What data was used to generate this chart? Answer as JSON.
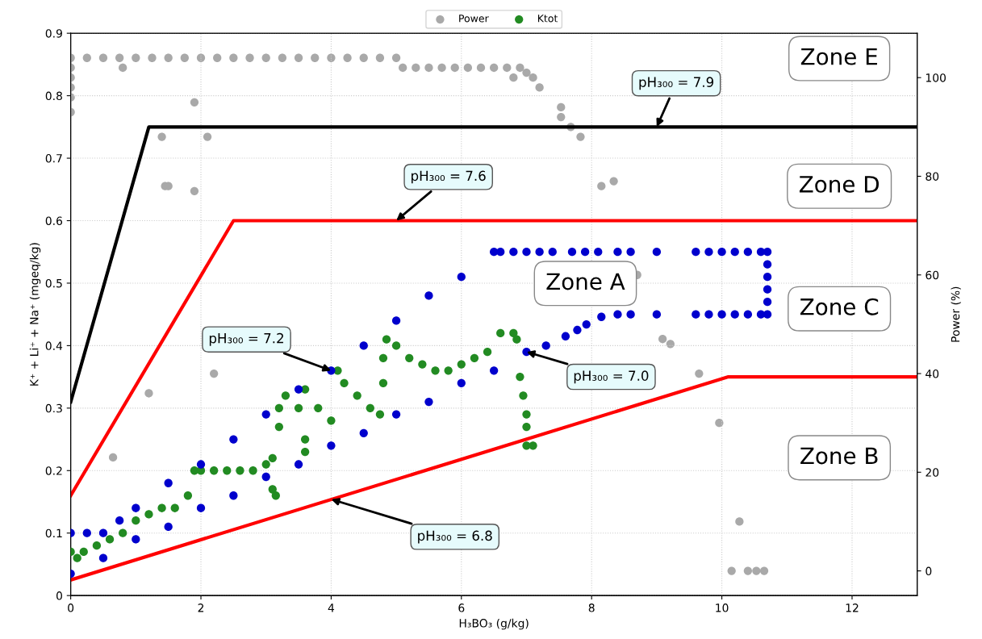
{
  "chart_data": {
    "type": "scatter",
    "xlabel": "H₃BO₃ (g/kg)",
    "ylabel": "K⁺ + Li⁺ + Na⁺ (mgeq/kg)",
    "y2label": "Power (%)",
    "xlim": [
      0,
      13
    ],
    "xticks": [
      0,
      2,
      4,
      6,
      8,
      10,
      12
    ],
    "ylim": [
      0,
      0.9
    ],
    "yticks": [
      0,
      0.1,
      0.2,
      0.3,
      0.4,
      0.5,
      0.6,
      0.7,
      0.8,
      0.9
    ],
    "y2lim": [
      -5,
      109
    ],
    "y2ticks": [
      0,
      20,
      40,
      60,
      80,
      100
    ],
    "grid": true,
    "legend": "top",
    "series": [
      {
        "name": "Power",
        "marker": "circle",
        "axis": "y2",
        "color": "#a9a9a9",
        "x": [
          0,
          0.25,
          0.5,
          0.75,
          1.0,
          1.25,
          1.5,
          1.75,
          2.0,
          2.25,
          2.5,
          2.75,
          3.0,
          3.25,
          3.5,
          3.75,
          4.0,
          4.25,
          4.5,
          4.75,
          5.0,
          5.1,
          5.3,
          5.5,
          5.7,
          5.9,
          6.1,
          6.3,
          6.5,
          6.7,
          6.9,
          0,
          0,
          0,
          0,
          0,
          0.8,
          1.4,
          1.45,
          1.5,
          1.9,
          1.9,
          2.1,
          0.65,
          1.2,
          2.2,
          6.8,
          7.0,
          7.1,
          7.2,
          7.53,
          7.53,
          7.68,
          7.83,
          8.15,
          8.34,
          8.7,
          9.09,
          9.21,
          9.65,
          9.96,
          10.27,
          10.15,
          10.4,
          10.53,
          10.65
        ],
        "values": [
          104,
          104,
          104,
          104,
          104,
          104,
          104,
          104,
          104,
          104,
          104,
          104,
          104,
          104,
          104,
          104,
          104,
          104,
          104,
          104,
          104,
          102,
          102,
          102,
          102,
          102,
          102,
          102,
          102,
          102,
          102,
          102,
          100,
          98,
          96,
          93,
          102,
          88,
          78,
          78,
          95,
          77,
          88,
          23,
          36,
          40,
          100,
          101,
          100,
          98,
          94,
          92,
          90,
          88,
          78,
          79,
          60,
          47,
          46,
          40,
          30,
          10,
          0,
          0,
          0,
          0
        ]
      },
      {
        "name": "Ktot",
        "marker": "circle",
        "color": "#228b22",
        "x": [
          0,
          0.1,
          0.2,
          0.4,
          0.6,
          0.8,
          1.0,
          1.2,
          1.4,
          1.6,
          1.8,
          1.9,
          2.0,
          2.2,
          2.4,
          2.6,
          2.8,
          3.0,
          3.1,
          3.1,
          3.15,
          3.2,
          3.2,
          3.3,
          3.5,
          3.6,
          3.6,
          3.6,
          3.8,
          4.0,
          4.1,
          4.2,
          4.4,
          4.6,
          4.75,
          4.8,
          4.8,
          4.85,
          5.0,
          5.2,
          5.4,
          5.6,
          5.8,
          6.0,
          6.2,
          6.4,
          6.6,
          6.8,
          6.85,
          6.9,
          6.95,
          7.0,
          7.0,
          7.0,
          7.1
        ],
        "values": [
          0.07,
          0.06,
          0.07,
          0.08,
          0.09,
          0.1,
          0.12,
          0.13,
          0.14,
          0.14,
          0.16,
          0.2,
          0.2,
          0.2,
          0.2,
          0.2,
          0.2,
          0.21,
          0.22,
          0.17,
          0.16,
          0.3,
          0.27,
          0.32,
          0.3,
          0.33,
          0.25,
          0.23,
          0.3,
          0.28,
          0.36,
          0.34,
          0.32,
          0.3,
          0.29,
          0.34,
          0.38,
          0.41,
          0.4,
          0.38,
          0.37,
          0.36,
          0.36,
          0.37,
          0.38,
          0.39,
          0.42,
          0.42,
          0.41,
          0.35,
          0.32,
          0.29,
          0.27,
          0.24,
          0.24
        ]
      },
      {
        "marker": "circle",
        "color": "#0000cd",
        "x": [
          0,
          0.25,
          0.5,
          0.75,
          1.0,
          1.5,
          2.0,
          2.5,
          3.0,
          3.5,
          4.0,
          4.5,
          5.0,
          5.5,
          6.0,
          6.5,
          6.6,
          6.8,
          7.0,
          7.2,
          7.4,
          7.7,
          7.9,
          8.1,
          8.4,
          8.6,
          9.0,
          9.6,
          9.8,
          10.0,
          10.2,
          10.4,
          10.6,
          10.7,
          10.7,
          10.7,
          10.7,
          10.7,
          10.7,
          10.6,
          10.4,
          10.2,
          10.0,
          9.8,
          9.6,
          9.0,
          8.6,
          8.4,
          8.15,
          7.92,
          7.78,
          7.6,
          7.3,
          0,
          0.5,
          1.0,
          1.5,
          2.0,
          2.5,
          3.0,
          3.5,
          4.0,
          4.5,
          5.0,
          5.5,
          6.0,
          6.5,
          7.0
        ],
        "values": [
          0.1,
          0.1,
          0.1,
          0.12,
          0.14,
          0.18,
          0.21,
          0.25,
          0.29,
          0.33,
          0.36,
          0.4,
          0.44,
          0.48,
          0.51,
          0.55,
          0.55,
          0.55,
          0.55,
          0.55,
          0.55,
          0.55,
          0.55,
          0.55,
          0.55,
          0.55,
          0.55,
          0.55,
          0.55,
          0.55,
          0.55,
          0.55,
          0.55,
          0.55,
          0.53,
          0.51,
          0.49,
          0.47,
          0.45,
          0.45,
          0.45,
          0.45,
          0.45,
          0.45,
          0.45,
          0.45,
          0.45,
          0.45,
          0.446,
          0.434,
          0.425,
          0.415,
          0.4,
          0.035,
          0.06,
          0.09,
          0.11,
          0.14,
          0.16,
          0.19,
          0.21,
          0.24,
          0.26,
          0.29,
          0.31,
          0.34,
          0.36,
          0.39
        ]
      },
      {
        "type": "line",
        "color": "#000000",
        "x": [
          0,
          1.2,
          13
        ],
        "values": [
          0.31,
          0.75,
          0.75
        ]
      },
      {
        "type": "line",
        "color": "#ff0000",
        "x": [
          0,
          2.5,
          13
        ],
        "values": [
          0.16,
          0.6,
          0.6
        ]
      },
      {
        "type": "line",
        "color": "#ff0000",
        "x": [
          0,
          10.1,
          13
        ],
        "values": [
          0.025,
          0.35,
          0.35
        ]
      }
    ],
    "annotations": [
      {
        "text": "pH₃₀₀ = 7.9",
        "x": 9.0,
        "y": 0.75
      },
      {
        "text": "pH₃₀₀ = 7.6",
        "x": 5.0,
        "y": 0.6
      },
      {
        "text": "pH₃₀₀ = 7.2",
        "x": 4.0,
        "y": 0.36
      },
      {
        "text": "pH₃₀₀ = 7.0",
        "x": 7.0,
        "y": 0.39
      },
      {
        "text": "pH₃₀₀ = 6.8",
        "x": 4.0,
        "y": 0.154
      },
      "Zone E",
      "Zone D",
      "Zone A",
      "Zone C",
      "Zone B"
    ]
  }
}
